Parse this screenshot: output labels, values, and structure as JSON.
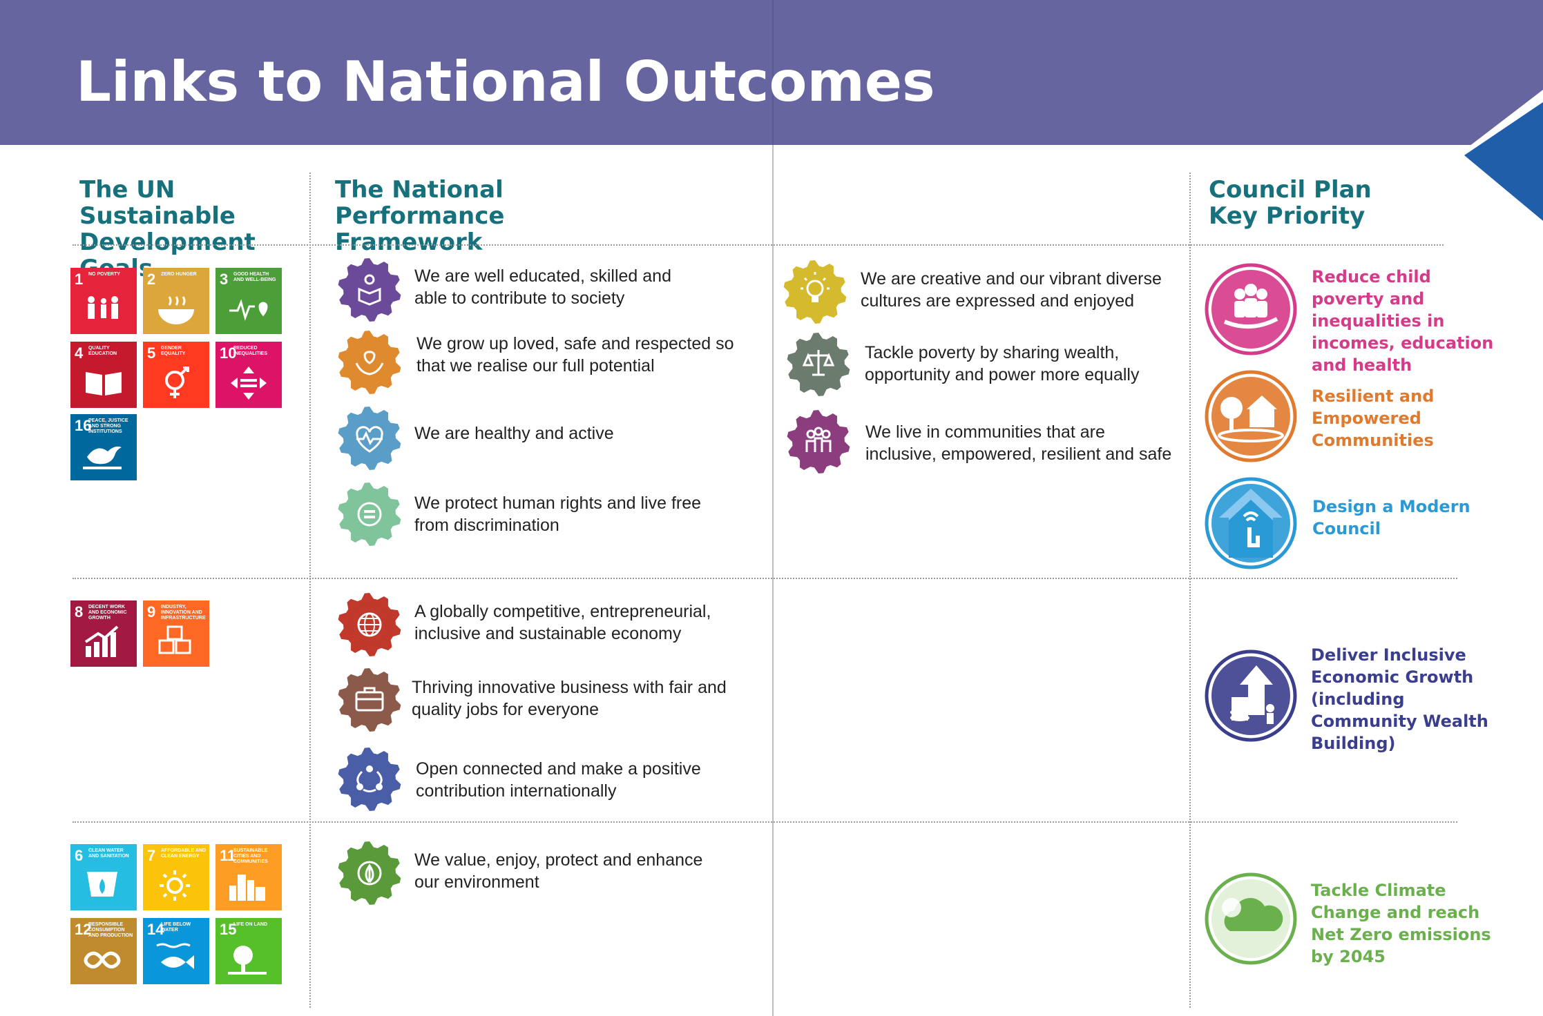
{
  "page": {
    "title": "Links to National Outcomes"
  },
  "headers": {
    "sdg": "The UN Sustainable\nDevelopment Goals",
    "npf": "The National Performance\nFramework",
    "council": "Council Plan\nKey Priority"
  },
  "sdg_tiles": [
    {
      "num": "1",
      "label": "No Poverty",
      "color": "#e5243b",
      "icon": "family-icon"
    },
    {
      "num": "2",
      "label": "Zero Hunger",
      "color": "#dda63a",
      "icon": "bowl-icon"
    },
    {
      "num": "3",
      "label": "Good Health and Well-Being",
      "color": "#4c9f38",
      "icon": "heartbeat-icon"
    },
    {
      "num": "4",
      "label": "Quality Education",
      "color": "#c5192d",
      "icon": "book-icon"
    },
    {
      "num": "5",
      "label": "Gender Equality",
      "color": "#ff3a21",
      "icon": "gender-icon"
    },
    {
      "num": "10",
      "label": "Reduced Inequalities",
      "color": "#dd1367",
      "icon": "equality-arrows-icon"
    },
    {
      "num": "16",
      "label": "Peace, Justice and Strong Institutions",
      "color": "#00689d",
      "icon": "dove-icon"
    },
    {
      "num": "8",
      "label": "Decent Work and Economic Growth",
      "color": "#a21942",
      "icon": "growth-chart-icon"
    },
    {
      "num": "9",
      "label": "Industry, Innovation and Infrastructure",
      "color": "#fd6925",
      "icon": "cubes-icon"
    },
    {
      "num": "6",
      "label": "Clean Water and Sanitation",
      "color": "#26bde2",
      "icon": "water-drop-icon"
    },
    {
      "num": "7",
      "label": "Affordable and Clean Energy",
      "color": "#fcc30b",
      "icon": "sun-icon"
    },
    {
      "num": "11",
      "label": "Sustainable Cities and Communities",
      "color": "#fd9d24",
      "icon": "city-icon"
    },
    {
      "num": "12",
      "label": "Responsible Consumption and Production",
      "color": "#bf8b2e",
      "icon": "infinity-icon"
    },
    {
      "num": "14",
      "label": "Life Below Water",
      "color": "#0a97d9",
      "icon": "fish-icon"
    },
    {
      "num": "15",
      "label": "Life on Land",
      "color": "#56c02b",
      "icon": "tree-icon"
    }
  ],
  "outcomes": [
    {
      "text": "We are well educated, skilled and able to contribute to society",
      "color": "#6c4a9a",
      "icon": "reading-person-icon"
    },
    {
      "text": "We grow up loved, safe and respected so that we realise our full potential",
      "color": "#e08a30",
      "icon": "heart-hands-icon"
    },
    {
      "text": "We are healthy and active",
      "color": "#5a9dc7",
      "icon": "heartbeat-icon"
    },
    {
      "text": "We protect human rights and live free from discrimination",
      "color": "#7fc49a",
      "icon": "equals-icon"
    },
    {
      "text": "We are creative and our vibrant diverse cultures are expressed and enjoyed",
      "color": "#d6ba2d",
      "icon": "lightbulb-icon"
    },
    {
      "text": "Tackle poverty by sharing wealth, opportunity and power more equally",
      "color": "#6b7b6e",
      "icon": "scales-icon"
    },
    {
      "text": "We live in communities that are inclusive, empowered, resilient and safe",
      "color": "#8c3d7e",
      "icon": "people-group-icon"
    },
    {
      "text": "A globally competitive, entrepreneurial, inclusive and sustainable economy",
      "color": "#c0392b",
      "icon": "globe-icon"
    },
    {
      "text": "Thriving innovative business with fair and quality jobs for everyone",
      "color": "#8b5a4a",
      "icon": "briefcase-icon"
    },
    {
      "text": "Open connected and make a positive contribution internationally",
      "color": "#4a5ea8",
      "icon": "network-icon"
    },
    {
      "text": "We value, enjoy, protect and enhance our environment",
      "color": "#5a9a3a",
      "icon": "leaf-icon"
    }
  ],
  "priorities": [
    {
      "text": "Reduce child poverty and inequalities in incomes, education and health",
      "color": "#d63a8a",
      "icon": "family-hand-icon"
    },
    {
      "text": "Resilient and Empowered Communities",
      "color": "#e07a2e",
      "icon": "houses-icon"
    },
    {
      "text": "Design a Modern Council",
      "color": "#2a9ad6",
      "icon": "digital-touch-icon"
    },
    {
      "text": "Deliver Inclusive Economic Growth (including Community Wealth Building)",
      "color": "#3b3e8c",
      "icon": "growth-arrow-icon"
    },
    {
      "text": "Tackle Climate Change and reach Net Zero emissions by 2045",
      "color": "#6ab04c",
      "icon": "cloud-icon"
    }
  ]
}
